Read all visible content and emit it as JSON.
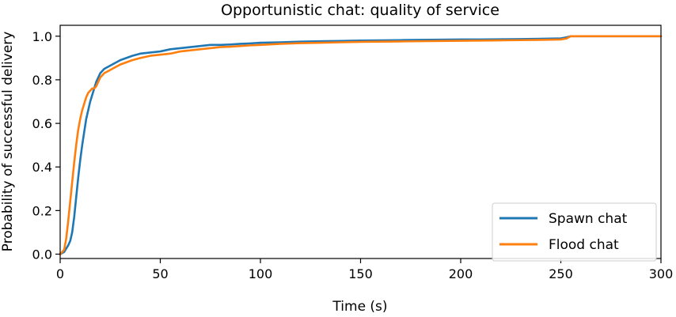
{
  "chart_data": {
    "type": "line",
    "title": "Opportunistic chat: quality of service",
    "xlabel": "Time (s)",
    "ylabel": "Probability of successful delivery",
    "xlim": [
      0,
      300
    ],
    "ylim": [
      -0.02,
      1.05
    ],
    "x_ticks": [
      0,
      50,
      100,
      150,
      200,
      250,
      300
    ],
    "y_ticks": [
      0.0,
      0.2,
      0.4,
      0.6,
      0.8,
      1.0
    ],
    "x_tick_labels": [
      "0",
      "50",
      "100",
      "150",
      "200",
      "250",
      "300"
    ],
    "y_tick_labels": [
      "0.0",
      "0.2",
      "0.4",
      "0.6",
      "0.8",
      "1.0"
    ],
    "grid": false,
    "legend_position": "bottom-right",
    "series": [
      {
        "name": "Spawn chat",
        "color": "#1f77b4",
        "x": [
          0,
          2,
          4,
          5,
          6,
          7,
          8,
          9,
          10,
          11,
          12,
          13,
          14,
          15,
          16,
          17,
          18,
          19,
          20,
          22,
          24,
          26,
          28,
          30,
          33,
          36,
          40,
          45,
          50,
          55,
          60,
          65,
          70,
          75,
          80,
          85,
          90,
          95,
          100,
          110,
          120,
          130,
          140,
          150,
          160,
          170,
          180,
          190,
          200,
          210,
          220,
          230,
          240,
          250,
          253,
          255,
          300
        ],
        "y": [
          0.0,
          0.01,
          0.04,
          0.06,
          0.1,
          0.17,
          0.26,
          0.35,
          0.43,
          0.5,
          0.56,
          0.62,
          0.66,
          0.7,
          0.73,
          0.76,
          0.79,
          0.81,
          0.83,
          0.85,
          0.86,
          0.87,
          0.88,
          0.89,
          0.9,
          0.91,
          0.92,
          0.925,
          0.93,
          0.94,
          0.945,
          0.95,
          0.955,
          0.96,
          0.96,
          0.962,
          0.965,
          0.967,
          0.97,
          0.972,
          0.975,
          0.977,
          0.978,
          0.98,
          0.981,
          0.982,
          0.983,
          0.984,
          0.985,
          0.985,
          0.986,
          0.987,
          0.988,
          0.99,
          0.995,
          1.0,
          1.0
        ]
      },
      {
        "name": "Flood chat",
        "color": "#ff7f0e",
        "x": [
          0,
          2,
          3,
          4,
          5,
          6,
          7,
          8,
          9,
          10,
          11,
          12,
          13,
          14,
          15,
          16,
          17,
          18,
          19,
          20,
          22,
          24,
          26,
          28,
          30,
          33,
          36,
          40,
          45,
          50,
          55,
          60,
          65,
          70,
          75,
          80,
          85,
          90,
          95,
          100,
          110,
          120,
          130,
          140,
          150,
          160,
          170,
          180,
          190,
          200,
          210,
          220,
          230,
          240,
          250,
          253,
          255,
          300
        ],
        "y": [
          0.0,
          0.02,
          0.07,
          0.15,
          0.24,
          0.33,
          0.42,
          0.5,
          0.57,
          0.62,
          0.66,
          0.69,
          0.72,
          0.74,
          0.75,
          0.76,
          0.76,
          0.77,
          0.79,
          0.81,
          0.83,
          0.84,
          0.85,
          0.86,
          0.87,
          0.88,
          0.89,
          0.9,
          0.91,
          0.915,
          0.92,
          0.93,
          0.935,
          0.94,
          0.945,
          0.95,
          0.952,
          0.955,
          0.958,
          0.96,
          0.965,
          0.968,
          0.97,
          0.972,
          0.974,
          0.975,
          0.976,
          0.977,
          0.978,
          0.979,
          0.98,
          0.981,
          0.982,
          0.983,
          0.985,
          0.99,
          1.0,
          1.0
        ]
      }
    ]
  }
}
